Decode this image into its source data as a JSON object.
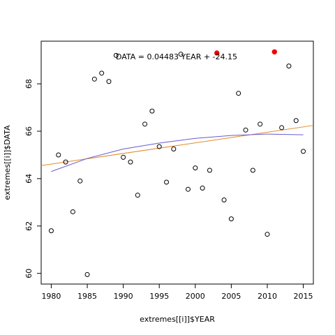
{
  "chart_data": {
    "type": "scatter",
    "xlabel": "extremes[[i]]$YEAR",
    "ylabel": "extremes[[i]]$DATA",
    "xlim": [
      1978.6,
      2016.4
    ],
    "ylim": [
      59.55,
      69.8
    ],
    "xticks": [
      1980,
      1985,
      1990,
      1995,
      2000,
      2005,
      2010,
      2015
    ],
    "yticks": [
      60,
      62,
      64,
      66,
      68
    ],
    "annotation": "DATA = 0.04483 YEAR + -24.15",
    "points": [
      {
        "x": 1980,
        "y": 61.8
      },
      {
        "x": 1981,
        "y": 65.0
      },
      {
        "x": 1982,
        "y": 64.7
      },
      {
        "x": 1983,
        "y": 62.6
      },
      {
        "x": 1984,
        "y": 63.9
      },
      {
        "x": 1985,
        "y": 59.95
      },
      {
        "x": 1986,
        "y": 68.2
      },
      {
        "x": 1987,
        "y": 68.45
      },
      {
        "x": 1988,
        "y": 68.1
      },
      {
        "x": 1989,
        "y": 69.2
      },
      {
        "x": 1990,
        "y": 64.9
      },
      {
        "x": 1991,
        "y": 64.7
      },
      {
        "x": 1992,
        "y": 63.3
      },
      {
        "x": 1993,
        "y": 66.3
      },
      {
        "x": 1994,
        "y": 66.85
      },
      {
        "x": 1995,
        "y": 65.35
      },
      {
        "x": 1996,
        "y": 63.85
      },
      {
        "x": 1997,
        "y": 65.25
      },
      {
        "x": 1998,
        "y": 69.25
      },
      {
        "x": 1999,
        "y": 63.55
      },
      {
        "x": 2000,
        "y": 64.45
      },
      {
        "x": 2001,
        "y": 63.6
      },
      {
        "x": 2002,
        "y": 64.35
      },
      {
        "x": 2003,
        "y": 69.3,
        "highlight": true
      },
      {
        "x": 2004,
        "y": 63.1
      },
      {
        "x": 2005,
        "y": 62.3
      },
      {
        "x": 2006,
        "y": 67.6
      },
      {
        "x": 2007,
        "y": 66.05
      },
      {
        "x": 2008,
        "y": 64.35
      },
      {
        "x": 2009,
        "y": 66.3
      },
      {
        "x": 2010,
        "y": 61.65
      },
      {
        "x": 2011,
        "y": 69.35,
        "highlight": true
      },
      {
        "x": 2012,
        "y": 66.15
      },
      {
        "x": 2013,
        "y": 68.75
      },
      {
        "x": 2014,
        "y": 66.45
      },
      {
        "x": 2015,
        "y": 65.15
      }
    ],
    "linear_fit": {
      "slope": 0.04483,
      "intercept": -24.15,
      "color": "#e08a2c"
    },
    "smooth_curve": {
      "color": "#6a5acd",
      "x": [
        1980,
        1985,
        1990,
        1995,
        2000,
        2005,
        2010,
        2015
      ],
      "y": [
        64.3,
        64.85,
        65.25,
        65.5,
        65.7,
        65.82,
        65.88,
        65.85
      ]
    },
    "highlight_color": "#ee0000",
    "grid": false
  }
}
